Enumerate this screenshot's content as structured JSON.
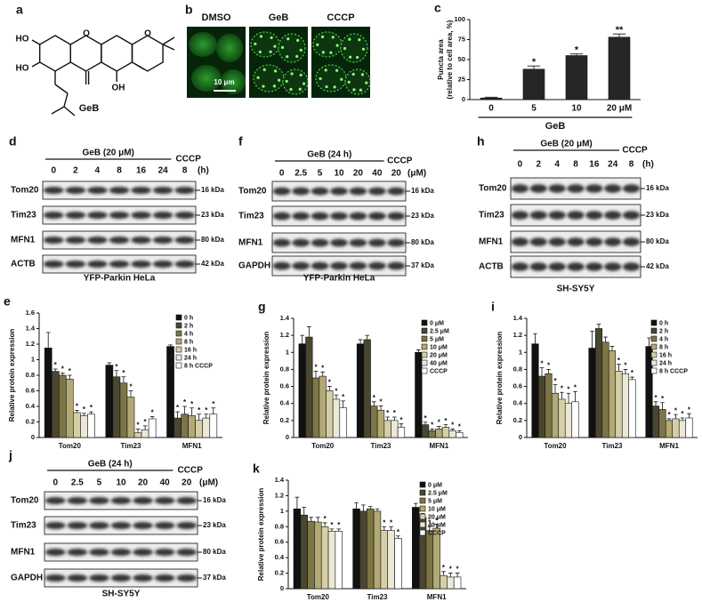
{
  "figure": {
    "a": {
      "label": "a",
      "compound": "GeB",
      "atoms": [
        "HO",
        "HO",
        "OH",
        "O",
        "O"
      ]
    },
    "b": {
      "label": "b",
      "images": [
        "DMSO",
        "GeB",
        "CCCP"
      ],
      "scale_bar": "10 μm"
    },
    "blots": [
      {
        "label": "d",
        "treatment": "GeB (20 μM)",
        "control": "CCCP",
        "lanes": [
          "0",
          "2",
          "4",
          "8",
          "16",
          "24",
          "8"
        ],
        "unit": "(h)",
        "proteins": [
          {
            "name": "Tom20",
            "size": "16 kDa"
          },
          {
            "name": "Tim23",
            "size": "23 kDa"
          },
          {
            "name": "MFN1",
            "size": "80 kDa"
          },
          {
            "name": "ACTB",
            "size": "42 kDa"
          }
        ],
        "cell_line": "YFP-Parkin HeLa"
      },
      {
        "label": "f",
        "treatment": "GeB (24 h)",
        "control": "CCCP",
        "lanes": [
          "0",
          "2.5",
          "5",
          "10",
          "20",
          "40",
          "20"
        ],
        "unit": "(μM)",
        "proteins": [
          {
            "name": "Tom20",
            "size": "16 kDa"
          },
          {
            "name": "Tim23",
            "size": "23 kDa"
          },
          {
            "name": "MFN1",
            "size": "80 kDa"
          },
          {
            "name": "GAPDH",
            "size": "37 kDa"
          }
        ],
        "cell_line": "YFP-Parkin HeLa"
      },
      {
        "label": "h",
        "treatment": "GeB (20 μM)",
        "control": "CCCP",
        "lanes": [
          "0",
          "2",
          "4",
          "8",
          "16",
          "24",
          "8"
        ],
        "unit": "(h)",
        "proteins": [
          {
            "name": "Tom20",
            "size": "16 kDa"
          },
          {
            "name": "Tim23",
            "size": "23 kDa"
          },
          {
            "name": "MFN1",
            "size": "80 kDa"
          },
          {
            "name": "ACTB",
            "size": "42 kDa"
          }
        ],
        "cell_line": "SH-SY5Y"
      },
      {
        "label": "j",
        "treatment": "GeB (24 h)",
        "control": "CCCP",
        "lanes": [
          "0",
          "2.5",
          "5",
          "10",
          "20",
          "40",
          "20"
        ],
        "unit": "(μM)",
        "proteins": [
          {
            "name": "Tom20",
            "size": "16 kDa"
          },
          {
            "name": "Tim23",
            "size": "23 kDa"
          },
          {
            "name": "MFN1",
            "size": "80 kDa"
          },
          {
            "name": "GAPDH",
            "size": "37 kDa"
          }
        ],
        "cell_line": "SH-SY5Y"
      }
    ]
  },
  "chart_data": [
    {
      "type": "bar",
      "label": "c",
      "ylabel": [
        "Puncta area",
        "(relative to cell area, %)"
      ],
      "xlabel": "GeB",
      "categories": [
        "0",
        "5",
        "10",
        "20 μM"
      ],
      "values": [
        2,
        38,
        55,
        78
      ],
      "errors": [
        1,
        4,
        2,
        4
      ],
      "significance": [
        null,
        "*",
        "*",
        "**"
      ],
      "color": "#262626",
      "ylim": [
        0,
        100
      ],
      "yticks": [
        0,
        25,
        50,
        75,
        100
      ]
    },
    {
      "type": "bar",
      "label": "e",
      "ylabel": "Relative protein expression",
      "categories": [
        "Tom20",
        "Tim23",
        "MFN1"
      ],
      "legend": "upper right",
      "ylim": [
        0,
        1.6
      ],
      "yticks": [
        0,
        0.2,
        0.4,
        0.6,
        0.8,
        1,
        1.2,
        1.4,
        1.6
      ],
      "series": [
        {
          "name": "0 h",
          "color": "#111111",
          "values": [
            1.15,
            0.93,
            1.17
          ],
          "errors": [
            0.2,
            0.03,
            0.02
          ],
          "significance": [
            null,
            null,
            null
          ]
        },
        {
          "name": "2 h",
          "color": "#4a4630",
          "values": [
            0.85,
            0.78,
            0.25
          ],
          "errors": [
            0.03,
            0.08,
            0.08
          ],
          "significance": [
            "*",
            "*",
            "*"
          ]
        },
        {
          "name": "4 h",
          "color": "#7d7545",
          "values": [
            0.8,
            0.7,
            0.3
          ],
          "errors": [
            0.03,
            0.08,
            0.1
          ],
          "significance": [
            "*",
            "*",
            "*"
          ]
        },
        {
          "name": "8 h",
          "color": "#b3a977",
          "values": [
            0.75,
            0.52,
            0.28
          ],
          "errors": [
            0.05,
            0.08,
            0.1
          ],
          "significance": [
            "*",
            "*",
            "*"
          ]
        },
        {
          "name": "16 h",
          "color": "#d5cfa8",
          "values": [
            0.32,
            0.06,
            0.22
          ],
          "errors": [
            0.03,
            0.05,
            0.08
          ],
          "significance": [
            "*",
            "*",
            "*"
          ]
        },
        {
          "name": "24 h",
          "color": "#ebe8d8",
          "values": [
            0.28,
            0.1,
            0.25
          ],
          "errors": [
            0.03,
            0.05,
            0.05
          ],
          "significance": [
            "*",
            "*",
            "*"
          ]
        },
        {
          "name": "8 h CCCP",
          "color": "#ffffff",
          "values": [
            0.3,
            0.24,
            0.3
          ],
          "errors": [
            0.03,
            0.03,
            0.08
          ],
          "significance": [
            "*",
            "*",
            "*"
          ]
        }
      ]
    },
    {
      "type": "bar",
      "label": "g",
      "ylabel": "Relative protein expression",
      "categories": [
        "Tom20",
        "Tim23",
        "MFN1"
      ],
      "legend": "upper right",
      "ylim": [
        0,
        1.4
      ],
      "yticks": [
        0,
        0.2,
        0.4,
        0.6,
        0.8,
        1,
        1.2,
        1.4
      ],
      "series": [
        {
          "name": "0 μM",
          "color": "#111111",
          "values": [
            1.1,
            1.1,
            1.0
          ],
          "errors": [
            0.1,
            0.05,
            0.03
          ],
          "significance": [
            null,
            null,
            null
          ]
        },
        {
          "name": "2.5 μM",
          "color": "#4a4630",
          "values": [
            1.18,
            1.15,
            0.15
          ],
          "errors": [
            0.12,
            0.05,
            0.03
          ],
          "significance": [
            null,
            null,
            "*"
          ]
        },
        {
          "name": "5 μM",
          "color": "#7d7545",
          "values": [
            0.7,
            0.37,
            0.08
          ],
          "errors": [
            0.08,
            0.05,
            0.02
          ],
          "significance": [
            "*",
            "*",
            "*"
          ]
        },
        {
          "name": "10 μM",
          "color": "#b3a977",
          "values": [
            0.72,
            0.32,
            0.1
          ],
          "errors": [
            0.05,
            0.05,
            0.03
          ],
          "significance": [
            "*",
            "*",
            "*"
          ]
        },
        {
          "name": "20 μM",
          "color": "#d5cfa8",
          "values": [
            0.55,
            0.2,
            0.12
          ],
          "errors": [
            0.05,
            0.04,
            0.03
          ],
          "significance": [
            "*",
            "*",
            "*"
          ]
        },
        {
          "name": "40 μM",
          "color": "#ebe8d8",
          "values": [
            0.45,
            0.2,
            0.08
          ],
          "errors": [
            0.05,
            0.04,
            0.02
          ],
          "significance": [
            "*",
            "*",
            "*"
          ]
        },
        {
          "name": "CCCP",
          "color": "#ffffff",
          "values": [
            0.35,
            0.12,
            0.06
          ],
          "errors": [
            0.08,
            0.04,
            0.02
          ],
          "significance": [
            "*",
            "*",
            "*"
          ]
        }
      ]
    },
    {
      "type": "bar",
      "label": "i",
      "ylabel": "Relative protein expression",
      "categories": [
        "Tom20",
        "Tim23",
        "MFN1"
      ],
      "legend": "upper right",
      "ylim": [
        0,
        1.4
      ],
      "yticks": [
        0,
        0.2,
        0.4,
        0.6,
        0.8,
        1,
        1.2,
        1.4
      ],
      "series": [
        {
          "name": "0 h",
          "color": "#111111",
          "values": [
            1.1,
            1.05,
            1.07
          ],
          "errors": [
            0.12,
            0.2,
            0.1
          ],
          "significance": [
            null,
            null,
            null
          ]
        },
        {
          "name": "2 h",
          "color": "#4a4630",
          "values": [
            0.72,
            1.28,
            0.37
          ],
          "errors": [
            0.1,
            0.05,
            0.05
          ],
          "significance": [
            "*",
            null,
            "*"
          ]
        },
        {
          "name": "4 h",
          "color": "#7d7545",
          "values": [
            0.75,
            1.12,
            0.33
          ],
          "errors": [
            0.05,
            0.06,
            0.08
          ],
          "significance": [
            "*",
            null,
            "*"
          ]
        },
        {
          "name": "8 h",
          "color": "#b3a977",
          "values": [
            0.52,
            1.02,
            0.2
          ],
          "errors": [
            0.1,
            0.05,
            0.02
          ],
          "significance": [
            "*",
            null,
            "*"
          ]
        },
        {
          "name": "16 h",
          "color": "#d5cfa8",
          "values": [
            0.45,
            0.78,
            0.22
          ],
          "errors": [
            0.08,
            0.08,
            0.05
          ],
          "significance": [
            "*",
            "*",
            "*"
          ]
        },
        {
          "name": "24 h",
          "color": "#ebe8d8",
          "values": [
            0.4,
            0.75,
            0.2
          ],
          "errors": [
            0.12,
            0.05,
            0.03
          ],
          "significance": [
            "*",
            "*",
            "*"
          ]
        },
        {
          "name": "8 h CCCP",
          "color": "#ffffff",
          "values": [
            0.42,
            0.68,
            0.23
          ],
          "errors": [
            0.12,
            0.03,
            0.05
          ],
          "significance": [
            "*",
            "*",
            "*"
          ]
        }
      ]
    },
    {
      "type": "bar",
      "label": "k",
      "ylabel": "Relative protein expression",
      "categories": [
        "Tom20",
        "Tim23",
        "MFN1"
      ],
      "legend": "upper right",
      "ylim": [
        0,
        1.4
      ],
      "yticks": [
        0,
        0.2,
        0.4,
        0.6,
        0.8,
        1,
        1.2,
        1.4
      ],
      "series": [
        {
          "name": "0 μM",
          "color": "#111111",
          "values": [
            1.03,
            1.03,
            1.05
          ],
          "errors": [
            0.15,
            0.08,
            0.05
          ],
          "significance": [
            null,
            null,
            null
          ]
        },
        {
          "name": "2.5 μM",
          "color": "#4a4630",
          "values": [
            0.95,
            1.0,
            0.92
          ],
          "errors": [
            0.1,
            0.08,
            0.05
          ],
          "significance": [
            null,
            null,
            null
          ]
        },
        {
          "name": "5 μM",
          "color": "#7d7545",
          "values": [
            0.87,
            1.03,
            0.75
          ],
          "errors": [
            0.05,
            0.03,
            0.05
          ],
          "significance": [
            null,
            null,
            "*"
          ]
        },
        {
          "name": "10 μM",
          "color": "#b3a977",
          "values": [
            0.86,
            1.0,
            0.78
          ],
          "errors": [
            0.06,
            0.03,
            0.05
          ],
          "significance": [
            null,
            null,
            "*"
          ]
        },
        {
          "name": "20 μM",
          "color": "#d5cfa8",
          "values": [
            0.8,
            0.75,
            0.17
          ],
          "errors": [
            0.05,
            0.05,
            0.05
          ],
          "significance": [
            "*",
            "*",
            "*"
          ]
        },
        {
          "name": "40 μM",
          "color": "#ebe8d8",
          "values": [
            0.74,
            0.75,
            0.15
          ],
          "errors": [
            0.03,
            0.05,
            0.05
          ],
          "significance": [
            "*",
            "*",
            "*"
          ]
        },
        {
          "name": "CCCP",
          "color": "#ffffff",
          "values": [
            0.74,
            0.65,
            0.15
          ],
          "errors": [
            0.03,
            0.03,
            0.05
          ],
          "significance": [
            "*",
            "*",
            "*"
          ]
        }
      ]
    }
  ]
}
